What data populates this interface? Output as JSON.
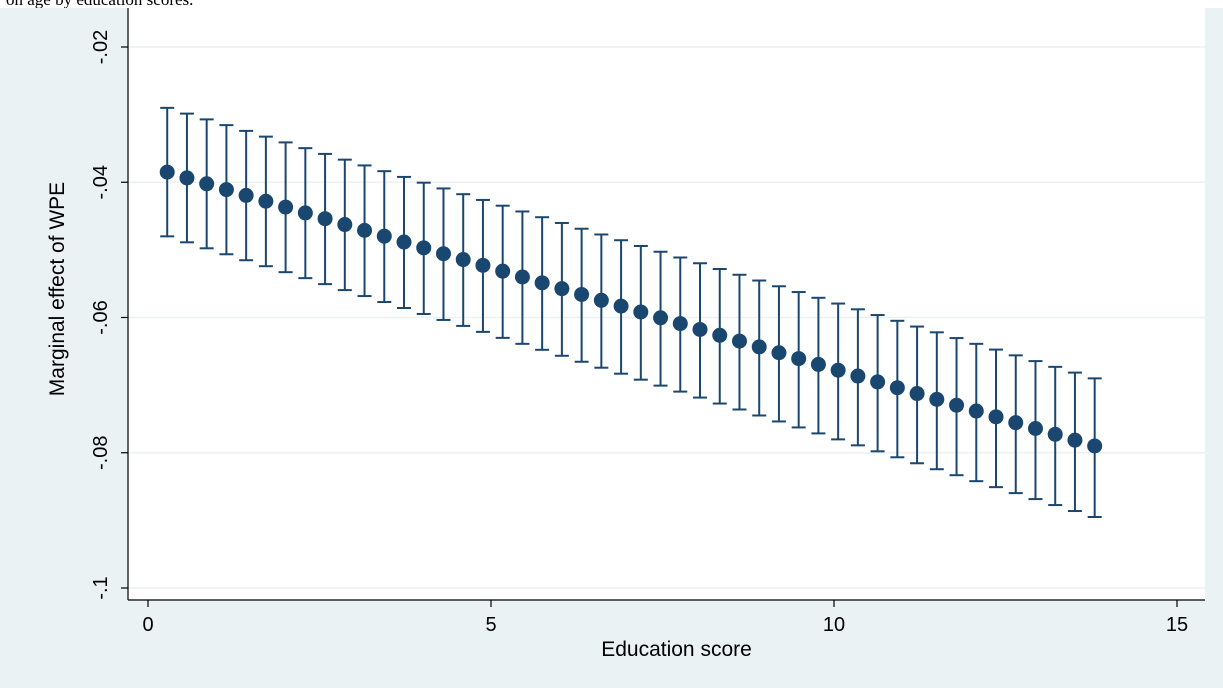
{
  "caption": "on age by education scores.",
  "colors": {
    "outer_bg": "#eaf2f3",
    "plot_bg": "#ffffff",
    "grid": "#eaf2f3",
    "series": "#1a476f",
    "axis": "#000000"
  },
  "chart_data": {
    "type": "scatter",
    "style": "point estimates with confidence-interval error bars (capped)",
    "xlabel": "Education score",
    "ylabel": "Marginal effect of WPE",
    "xlim": [
      0,
      15
    ],
    "ylim": [
      -0.1,
      -0.02
    ],
    "xticks": [
      0,
      5,
      10,
      15
    ],
    "xtick_labels": [
      "0",
      "5",
      "10",
      "15"
    ],
    "yticks": [
      -0.1,
      -0.08,
      -0.06,
      -0.04,
      -0.02
    ],
    "ytick_labels": [
      "-.1",
      "-.08",
      "-.06",
      "-.04",
      "-.02"
    ],
    "grid": true,
    "legend": "none",
    "x_start": 0.28,
    "x_end": 13.8,
    "y_start": -0.0385,
    "y_end": -0.079,
    "ci_upper_start": -0.029,
    "ci_upper_end": -0.069,
    "ci_lower_start": -0.048,
    "ci_lower_end": -0.0895,
    "n_points": 48
  }
}
